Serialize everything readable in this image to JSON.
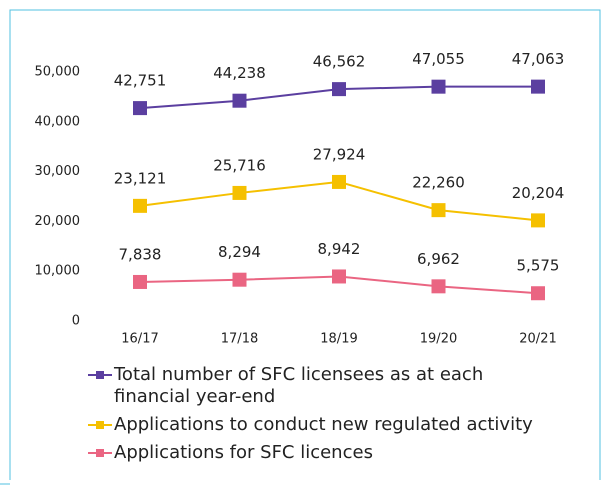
{
  "chart_data": {
    "type": "line",
    "categories": [
      "16/17",
      "17/18",
      "18/19",
      "19/20",
      "20/21"
    ],
    "series": [
      {
        "name": "Total number of SFC licensees as at each financial year-end",
        "color": "#5b3fa0",
        "values": [
          42751,
          44238,
          46562,
          47055,
          47063
        ],
        "value_labels": [
          "42,751",
          "44,238",
          "46,562",
          "47,055",
          "47,063"
        ]
      },
      {
        "name": "Applications to conduct new regulated activity",
        "color": "#f5c000",
        "values": [
          23121,
          25716,
          27924,
          22260,
          20204
        ],
        "value_labels": [
          "23,121",
          "25,716",
          "27,924",
          "22,260",
          "20,204"
        ]
      },
      {
        "name": "Applications for SFC licences",
        "color": "#ea6582",
        "values": [
          7838,
          8294,
          8942,
          6962,
          5575
        ],
        "value_labels": [
          "7,838",
          "8,294",
          "8,942",
          "6,962",
          "5,575"
        ]
      }
    ],
    "ylim": [
      0,
      50000
    ],
    "yticks": [
      0,
      {
        "value": 10000,
        "label": "10,000"
      },
      {
        "value": 20000,
        "label": "20,000"
      },
      {
        "value": 30000,
        "label": "30,000"
      },
      {
        "value": 40000,
        "label": "40,000"
      },
      {
        "value": 50000,
        "label": "50,000"
      }
    ],
    "grid": false
  }
}
